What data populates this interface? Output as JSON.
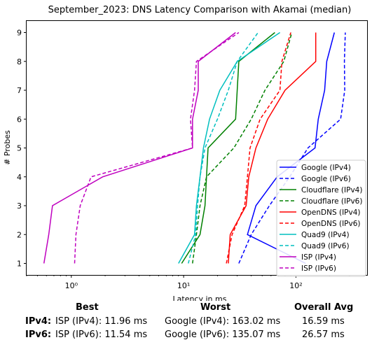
{
  "chart_data": {
    "type": "line",
    "title": "September_2023: DNS Latency Comparison with Akamai (median)",
    "xlabel": "Latency in ms",
    "ylabel": "# Probes",
    "xscale": "log",
    "xlim": [
      0.4,
      430
    ],
    "ylim": [
      0.6,
      9.4
    ],
    "xticks": [
      1,
      10,
      100
    ],
    "xtick_labels": [
      "10⁰",
      "10¹",
      "10²"
    ],
    "yticks": [
      1,
      2,
      3,
      4,
      5,
      6,
      7,
      8,
      9
    ],
    "grid": false,
    "legend_position": "lower right",
    "series": [
      {
        "name": "Google (IPv4)",
        "color": "#0000ff",
        "dash": "solid",
        "points": [
          [
            122,
            1
          ],
          [
            37,
            2
          ],
          [
            44,
            3
          ],
          [
            68,
            4
          ],
          [
            148,
            5
          ],
          [
            158,
            6
          ],
          [
            180,
            7
          ],
          [
            188,
            8
          ],
          [
            220,
            9
          ]
        ]
      },
      {
        "name": "Google (IPv6)",
        "color": "#0000ff",
        "dash": "dashed",
        "points": [
          [
            31,
            1
          ],
          [
            40,
            2
          ],
          [
            58,
            3
          ],
          [
            88,
            4
          ],
          [
            128,
            5
          ],
          [
            250,
            6
          ],
          [
            272,
            7
          ],
          [
            270,
            8
          ],
          [
            275,
            9
          ]
        ]
      },
      {
        "name": "Cloudflare (IPv4)",
        "color": "#008000",
        "dash": "solid",
        "points": [
          [
            9.6,
            1
          ],
          [
            14,
            2
          ],
          [
            15.5,
            3
          ],
          [
            16,
            4
          ],
          [
            16.5,
            5
          ],
          [
            29,
            6
          ],
          [
            30,
            7
          ],
          [
            31,
            8
          ],
          [
            65,
            9
          ]
        ]
      },
      {
        "name": "Cloudflare (IPv6)",
        "color": "#008000",
        "dash": "dashed",
        "points": [
          [
            12,
            1
          ],
          [
            13,
            2
          ],
          [
            14,
            3
          ],
          [
            16,
            4
          ],
          [
            28,
            5
          ],
          [
            40,
            6
          ],
          [
            53,
            7
          ],
          [
            78,
            8
          ],
          [
            92,
            9
          ]
        ]
      },
      {
        "name": "OpenDNS (IPv4)",
        "color": "#ff0000",
        "dash": "solid",
        "points": [
          [
            25,
            1
          ],
          [
            26,
            2
          ],
          [
            36,
            3
          ],
          [
            38,
            4
          ],
          [
            44,
            5
          ],
          [
            56,
            6
          ],
          [
            80,
            7
          ],
          [
            150,
            8
          ],
          [
            150,
            9
          ]
        ]
      },
      {
        "name": "OpenDNS (IPv6)",
        "color": "#ff0000",
        "dash": "dashed",
        "points": [
          [
            24,
            1
          ],
          [
            27,
            2
          ],
          [
            35,
            3
          ],
          [
            37,
            4
          ],
          [
            39,
            5
          ],
          [
            48,
            6
          ],
          [
            72,
            7
          ],
          [
            75,
            8
          ],
          [
            90,
            9
          ]
        ]
      },
      {
        "name": "Quad9 (IPv4)",
        "color": "#00bfbf",
        "dash": "solid",
        "points": [
          [
            9,
            1
          ],
          [
            12.5,
            2
          ],
          [
            13,
            3
          ],
          [
            14,
            4
          ],
          [
            15,
            5
          ],
          [
            17,
            6
          ],
          [
            21,
            7
          ],
          [
            30,
            8
          ],
          [
            72,
            9
          ]
        ]
      },
      {
        "name": "Quad9 (IPv6)",
        "color": "#00bfbf",
        "dash": "dashed",
        "points": [
          [
            11,
            1
          ],
          [
            12.8,
            2
          ],
          [
            13.3,
            3
          ],
          [
            14,
            4
          ],
          [
            15.5,
            5
          ],
          [
            20,
            6
          ],
          [
            25,
            7
          ],
          [
            30,
            8
          ],
          [
            46,
            9
          ]
        ]
      },
      {
        "name": "ISP (IPv4)",
        "color": "#bf00bf",
        "dash": "solid",
        "points": [
          [
            0.57,
            1
          ],
          [
            0.63,
            2
          ],
          [
            0.68,
            3
          ],
          [
            1.9,
            4
          ],
          [
            12,
            5
          ],
          [
            12,
            6
          ],
          [
            13.5,
            7
          ],
          [
            13.5,
            8
          ],
          [
            29,
            9
          ]
        ]
      },
      {
        "name": "ISP (IPv6)",
        "color": "#bf00bf",
        "dash": "dashed",
        "points": [
          [
            1.07,
            1
          ],
          [
            1.1,
            2
          ],
          [
            1.2,
            3
          ],
          [
            1.5,
            4
          ],
          [
            12,
            5
          ],
          [
            11.5,
            6
          ],
          [
            12.5,
            7
          ],
          [
            13,
            8
          ],
          [
            31,
            9
          ]
        ]
      }
    ]
  },
  "summary": {
    "headers": {
      "best": "Best",
      "worst": "Worst",
      "avg": "Overall Avg"
    },
    "rows": [
      {
        "label": "IPv4",
        "colon": ":",
        "best": "ISP (IPv4): 11.96 ms",
        "worst": "Google (IPv4): 163.02 ms",
        "avg": "16.59 ms"
      },
      {
        "label": "IPv6",
        "colon": ":",
        "best": "ISP (IPv6): 11.54 ms",
        "worst": "Google (IPv6): 135.07 ms",
        "avg": "26.57 ms"
      }
    ]
  }
}
